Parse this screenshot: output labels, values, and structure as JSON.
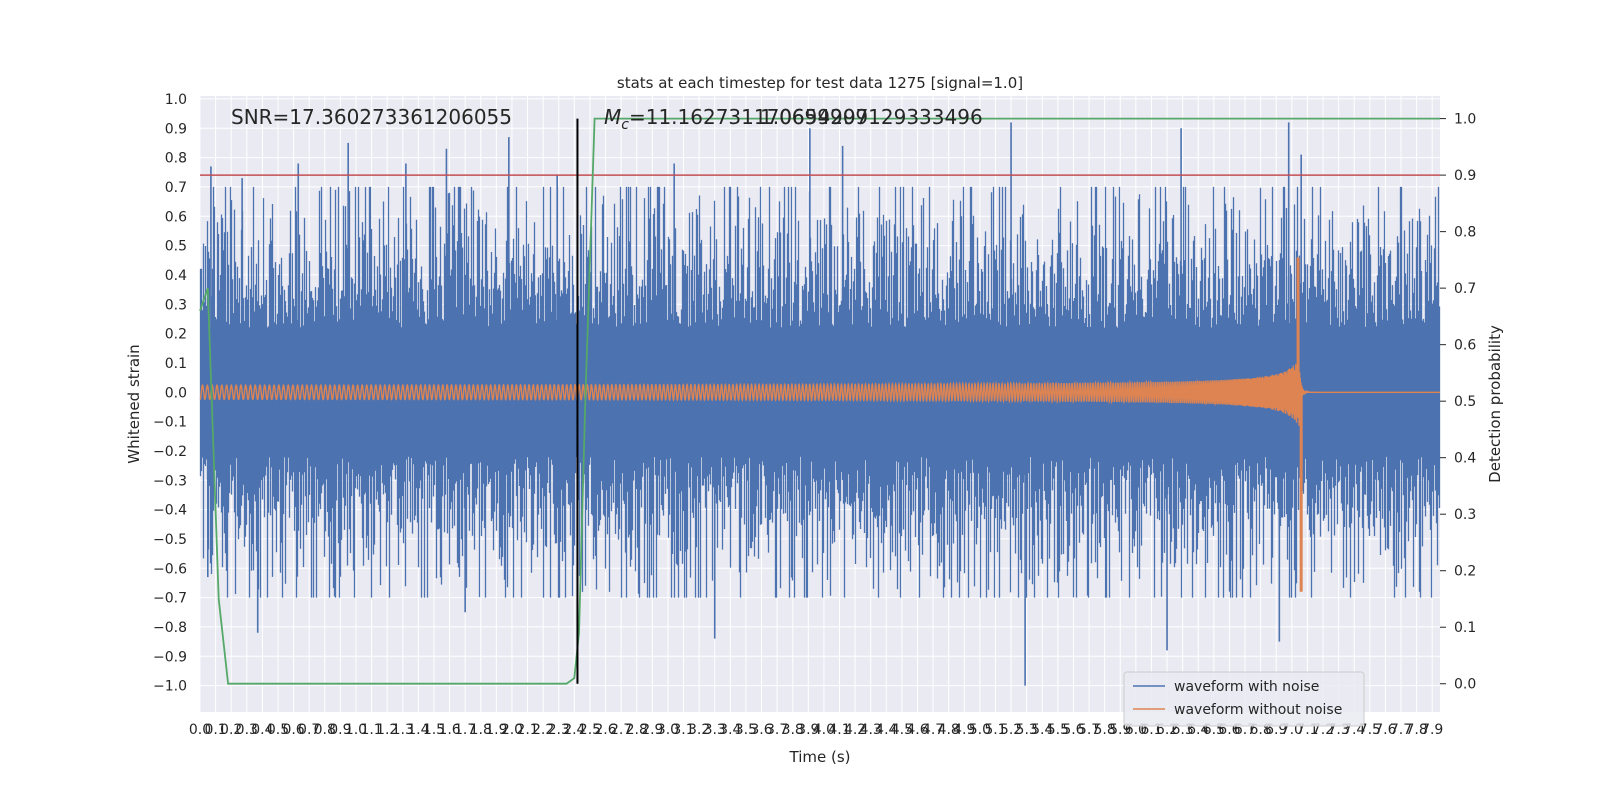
{
  "chart_data": {
    "type": "line",
    "title": "stats at each timestep for test data 1275 [signal=1.0]",
    "xlabel": "Time (s)",
    "ylabel": "Whitened strain",
    "ylabel_right": "Detection probability",
    "xlim": [
      0.0,
      7.95
    ],
    "ylim": [
      -1.09,
      1.01
    ],
    "ylim_right": [
      -0.05,
      1.04
    ],
    "x_ticks": [
      0.0,
      0.1,
      0.2,
      0.3,
      0.4,
      0.5,
      0.6,
      0.7,
      0.8,
      0.9,
      1.0,
      1.1,
      1.2,
      1.3,
      1.4,
      1.5,
      1.6,
      1.7,
      1.8,
      1.9,
      2.0,
      2.1,
      2.2,
      2.3,
      2.4,
      2.5,
      2.6,
      2.7,
      2.8,
      2.9,
      3.0,
      3.1,
      3.2,
      3.3,
      3.4,
      3.5,
      3.6,
      3.7,
      3.8,
      3.9,
      4.0,
      4.1,
      4.2,
      4.3,
      4.4,
      4.5,
      4.6,
      4.7,
      4.8,
      4.9,
      5.0,
      5.1,
      5.2,
      5.3,
      5.4,
      5.5,
      5.6,
      5.7,
      5.8,
      5.9,
      6.0,
      6.1,
      6.2,
      6.3,
      6.4,
      6.5,
      6.6,
      6.7,
      6.8,
      6.9,
      7.0,
      7.1,
      7.2,
      7.3,
      7.4,
      7.5,
      7.6,
      7.7,
      7.8,
      7.9
    ],
    "y_ticks": [
      1.0,
      0.9,
      0.8,
      0.7,
      0.6,
      0.5,
      0.4,
      0.3,
      0.2,
      0.1,
      0.0,
      -0.1,
      -0.2,
      -0.3,
      -0.4,
      -0.5,
      -0.6,
      -0.7,
      -0.8,
      -0.9,
      -1.0
    ],
    "y_ticks_right": [
      1.0,
      0.9,
      0.8,
      0.7,
      0.6,
      0.5,
      0.4,
      0.3,
      0.2,
      0.1,
      0.0
    ],
    "annotations": {
      "snr": "SNR=17.360273361206055",
      "mc_label": "M",
      "mc_sub": "c",
      "mc_value": "=11.162731170654297",
      "mc_overlap": "1.0699909129333496"
    },
    "threshold": {
      "value": 0.9,
      "axis": "right",
      "color": "#c44e52"
    },
    "merger_marker": {
      "x": 2.42,
      "color": "#000000"
    },
    "series": [
      {
        "name": "waveform with noise",
        "color": "#4c72b0",
        "axis": "left",
        "style": "noisy",
        "envelope_sigma": 0.27,
        "spike_peaks": [
          [
            0.07,
            0.77
          ],
          [
            0.27,
            0.73
          ],
          [
            0.63,
            0.78
          ],
          [
            0.95,
            0.85
          ],
          [
            1.32,
            0.78
          ],
          [
            1.58,
            0.83
          ],
          [
            1.98,
            0.87
          ],
          [
            2.29,
            0.74
          ],
          [
            3.04,
            0.78
          ],
          [
            3.91,
            0.9
          ],
          [
            4.12,
            0.84
          ],
          [
            5.2,
            0.92
          ],
          [
            6.29,
            0.9
          ],
          [
            6.98,
            0.92
          ],
          [
            7.06,
            0.81
          ],
          [
            5.29,
            -1.0
          ],
          [
            0.37,
            -0.82
          ],
          [
            3.3,
            -0.84
          ],
          [
            6.2,
            -0.88
          ],
          [
            6.92,
            -0.85
          ],
          [
            0.05,
            -0.63
          ],
          [
            1.7,
            -0.75
          ]
        ]
      },
      {
        "name": "waveform without noise",
        "color": "#dd8452",
        "axis": "left",
        "style": "chirp",
        "t_merger": 7.05,
        "peak_pos": 0.46,
        "peak_neg": -0.68
      },
      {
        "name": "Detection probability",
        "color": "#55a868",
        "axis": "right",
        "x": [
          0.0,
          0.05,
          0.12,
          0.18,
          2.35,
          2.4,
          2.43,
          2.47,
          2.53,
          7.95
        ],
        "values": [
          0.66,
          0.7,
          0.15,
          0.0,
          0.0,
          0.01,
          0.09,
          0.5,
          1.0,
          1.0
        ]
      }
    ],
    "legend": {
      "position": "lower-right",
      "entries": [
        {
          "label": "waveform with noise",
          "color": "#4c72b0"
        },
        {
          "label": "waveform without noise",
          "color": "#dd8452"
        }
      ]
    },
    "grid": true
  }
}
